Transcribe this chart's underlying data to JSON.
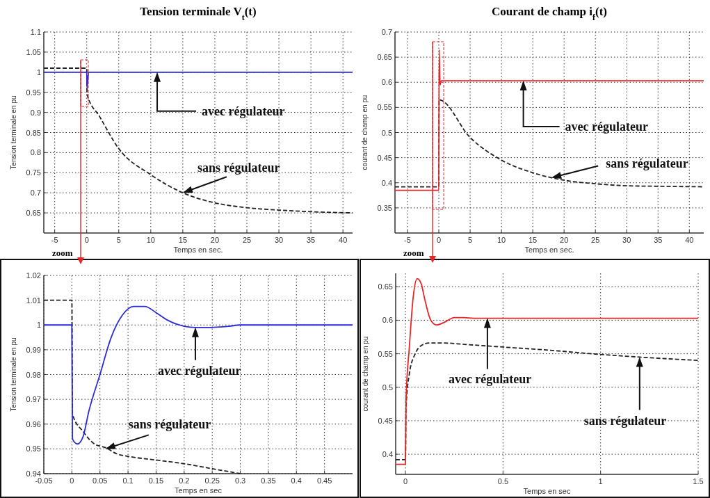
{
  "chart_data": [
    {
      "type": "line",
      "title": "Tension terminale V$_{t}$(t)",
      "xlabel": "Temps en sec.",
      "ylabel": "Tension terminale en pu",
      "xlim": [
        -6.7,
        41.5
      ],
      "ylim": [
        0.6,
        1.1
      ],
      "xticks": [
        -5,
        0,
        5,
        10,
        15,
        20,
        25,
        30,
        35,
        40
      ],
      "yticks": [
        0.65,
        0.7,
        0.75,
        0.8,
        0.85,
        0.9,
        0.95,
        1,
        1.05,
        1.1
      ],
      "grid": true,
      "marker": "none",
      "series": [
        {
          "color": "#222222",
          "line_style": "dashed",
          "x": [
            -6.7,
            0,
            0.05,
            2,
            5,
            10,
            15,
            20,
            25,
            30,
            35,
            41.5
          ],
          "values": [
            1.01,
            1.01,
            0.945,
            0.89,
            0.81,
            0.745,
            0.7,
            0.675,
            0.663,
            0.657,
            0.653,
            0.65
          ]
        },
        {
          "color": "#2b2bd9",
          "line_style": "solid",
          "x": [
            -6.7,
            0,
            0.05,
            0.3,
            41.5
          ],
          "values": [
            1,
            1,
            0.96,
            1,
            1
          ]
        }
      ],
      "annotations": [
        {
          "text": "avec régulateur",
          "x": 11,
          "y": 1
        },
        {
          "text": "sans régulateur",
          "x": 15,
          "y": 0.7
        },
        "zoom"
      ]
    },
    {
      "type": "line",
      "title": "Courant de champ i$_{f}$(t)",
      "xlabel": "Temps en sec.",
      "ylabel": "courant de champ en pu",
      "xlim": [
        -7,
        42.3
      ],
      "ylim": [
        0.3,
        0.7
      ],
      "xticks": [
        -5,
        0,
        5,
        10,
        15,
        20,
        25,
        30,
        35,
        40
      ],
      "yticks": [
        0.35,
        0.4,
        0.45,
        0.5,
        0.55,
        0.6,
        0.65,
        0.7
      ],
      "grid": true,
      "marker": "none",
      "series": [
        {
          "color": "#222222",
          "line_style": "dashed",
          "x": [
            -7,
            0,
            0.05,
            5,
            10,
            15,
            20,
            25,
            30,
            35,
            42.3
          ],
          "values": [
            0.392,
            0.392,
            0.565,
            0.49,
            0.445,
            0.42,
            0.405,
            0.398,
            0.394,
            0.393,
            0.392
          ]
        },
        {
          "color": "#e8262a",
          "line_style": "solid",
          "x": [
            -7,
            0,
            0.05,
            0.2,
            0.4,
            42.3
          ],
          "values": [
            0.385,
            0.385,
            0.665,
            0.595,
            0.603,
            0.603
          ]
        }
      ],
      "annotations": [
        {
          "text": "avec régulateur",
          "x": 13.5,
          "y": 0.603
        },
        {
          "text": "sans régulateur",
          "x": 18,
          "y": 0.41
        },
        "zoom"
      ]
    },
    {
      "type": "line",
      "xlabel": "Temps en sec",
      "ylabel": "Tension terminale en pu",
      "xlim": [
        -0.05,
        0.5
      ],
      "ylim": [
        0.94,
        1.02
      ],
      "xticks": [
        -0.05,
        0,
        0.05,
        0.1,
        0.15,
        0.2,
        0.25,
        0.3,
        0.35,
        0.4,
        0.45
      ],
      "yticks": [
        0.94,
        0.95,
        0.96,
        0.97,
        0.98,
        0.99,
        1,
        1.01,
        1.02
      ],
      "grid": true,
      "marker": "none",
      "series": [
        {
          "color": "#222222",
          "line_style": "dashed",
          "x": [
            -0.05,
            0,
            0.001,
            0.02,
            0.04,
            0.06,
            0.08,
            0.1,
            0.15,
            0.2,
            0.25,
            0.3
          ],
          "values": [
            1.01,
            1.01,
            0.964,
            0.957,
            0.952,
            0.9505,
            0.948,
            0.947,
            0.9455,
            0.944,
            0.942,
            0.94
          ]
        },
        {
          "color": "#2b2bd9",
          "line_style": "solid",
          "x": [
            -0.05,
            0,
            0.001,
            0.01,
            0.02,
            0.03,
            0.05,
            0.07,
            0.09,
            0.11,
            0.13,
            0.15,
            0.17,
            0.2,
            0.22,
            0.24,
            0.28,
            0.3,
            0.5
          ],
          "values": [
            1,
            1,
            0.954,
            0.952,
            0.955,
            0.965,
            0.98,
            0.995,
            1.004,
            1.0075,
            1.0075,
            1.005,
            1.002,
            0.9995,
            0.999,
            0.999,
            0.9995,
            1,
            1
          ]
        }
      ],
      "annotations": [
        {
          "text": "avec régulateur",
          "x": 0.22,
          "y": 0.999
        },
        {
          "text": "sans régulateur",
          "x": 0.06,
          "y": 0.95
        }
      ]
    },
    {
      "type": "line",
      "xlabel": "Temps en sec",
      "ylabel": "courant de champ en pu",
      "xlim": [
        -0.05,
        1.5
      ],
      "ylim": [
        0.37,
        0.67
      ],
      "xticks": [
        0,
        0.5,
        1,
        1.5
      ],
      "yticks": [
        0.4,
        0.45,
        0.5,
        0.55,
        0.6,
        0.65
      ],
      "grid": true,
      "marker": "none",
      "series": [
        {
          "color": "#222222",
          "line_style": "dashed",
          "x": [
            -0.05,
            0,
            0.003,
            0.02,
            0.05,
            0.08,
            0.12,
            0.2,
            0.3,
            0.5,
            0.75,
            1,
            1.2,
            1.5
          ],
          "values": [
            0.392,
            0.392,
            0.47,
            0.52,
            0.55,
            0.562,
            0.566,
            0.566,
            0.564,
            0.56,
            0.555,
            0.549,
            0.545,
            0.54
          ]
        },
        {
          "color": "#e8262a",
          "line_style": "solid",
          "x": [
            -0.05,
            0,
            0.003,
            0.02,
            0.04,
            0.06,
            0.08,
            0.1,
            0.13,
            0.16,
            0.2,
            0.25,
            0.3,
            0.35,
            1.5
          ],
          "values": [
            0.385,
            0.385,
            0.48,
            0.56,
            0.635,
            0.662,
            0.655,
            0.63,
            0.6,
            0.593,
            0.597,
            0.604,
            0.604,
            0.603,
            0.603
          ]
        }
      ],
      "annotations": [
        {
          "text": "avec régulateur",
          "x": 0.42,
          "y": 0.603
        },
        {
          "text": "sans régulateur",
          "x": 1.2,
          "y": 0.545
        }
      ]
    }
  ]
}
